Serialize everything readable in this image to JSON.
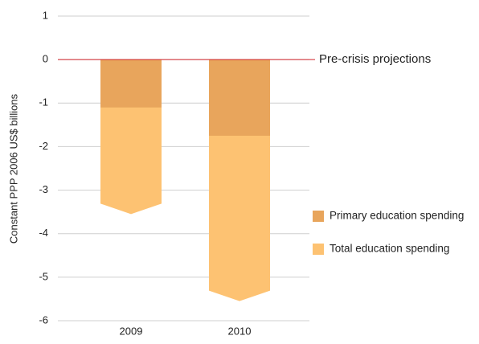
{
  "chart_data": {
    "type": "bar",
    "ylabel": "Constant PPP 2006 US$ billions",
    "categories": [
      "2009",
      "2010"
    ],
    "series": [
      {
        "name": "Total education spending",
        "color": "#fdc272",
        "values": [
          -3.55,
          -5.55
        ]
      },
      {
        "name": "Primary education spending",
        "color": "#e8a55c",
        "values": [
          -1.1,
          -1.75
        ]
      }
    ],
    "ylim": [
      -6,
      1
    ],
    "yticks": [
      1,
      0,
      -1,
      -2,
      -3,
      -4,
      -5,
      -6
    ],
    "grid": true,
    "reference_line": {
      "value": 0,
      "label": "Pre-crisis projections",
      "color": "#d2232a"
    },
    "legend": "right"
  }
}
